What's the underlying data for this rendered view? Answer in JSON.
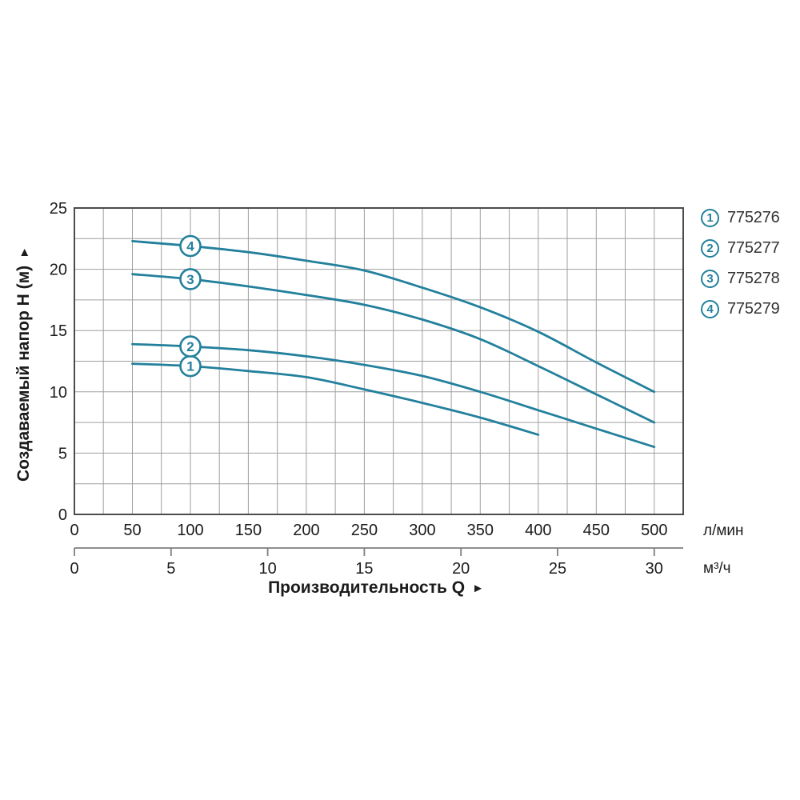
{
  "page": {
    "background": "#ffffff"
  },
  "chart_data": {
    "type": "line",
    "title": "",
    "x_axis": {
      "label": "Производительность Q",
      "label_arrow": "►",
      "primary_unit": "л/мин",
      "primary_ticks": [
        0,
        50,
        100,
        150,
        200,
        250,
        300,
        350,
        400,
        450,
        500
      ],
      "secondary_unit": "м³/ч",
      "secondary_ticks": [
        0,
        5,
        10,
        15,
        20,
        25,
        30
      ],
      "range_lmin": [
        0,
        525
      ],
      "grid_step_lmin": 25,
      "lmin_per_m3h": 16.6667,
      "grid": true
    },
    "y_axis": {
      "label": "Создаваемый напор H (м)",
      "label_arrow": "►",
      "ticks": [
        0,
        5,
        10,
        15,
        20,
        25
      ],
      "range": [
        0,
        25
      ],
      "grid_step": 2.5,
      "grid": true
    },
    "marker_at_q": 100,
    "series": [
      {
        "marker": "1",
        "model": "775276",
        "points": [
          [
            50,
            12.3
          ],
          [
            100,
            12.1
          ],
          [
            150,
            11.7
          ],
          [
            200,
            11.2
          ],
          [
            250,
            10.2
          ],
          [
            300,
            9.1
          ],
          [
            350,
            7.9
          ],
          [
            400,
            6.5
          ]
        ]
      },
      {
        "marker": "2",
        "model": "775277",
        "points": [
          [
            50,
            13.9
          ],
          [
            100,
            13.7
          ],
          [
            150,
            13.4
          ],
          [
            200,
            12.9
          ],
          [
            250,
            12.2
          ],
          [
            300,
            11.3
          ],
          [
            350,
            10.0
          ],
          [
            400,
            8.5
          ],
          [
            450,
            7.0
          ],
          [
            500,
            5.5
          ]
        ]
      },
      {
        "marker": "3",
        "model": "775278",
        "points": [
          [
            50,
            19.6
          ],
          [
            100,
            19.2
          ],
          [
            150,
            18.6
          ],
          [
            200,
            17.9
          ],
          [
            250,
            17.1
          ],
          [
            300,
            15.9
          ],
          [
            350,
            14.3
          ],
          [
            400,
            12.1
          ],
          [
            450,
            9.8
          ],
          [
            500,
            7.5
          ]
        ]
      },
      {
        "marker": "4",
        "model": "775279",
        "points": [
          [
            50,
            22.3
          ],
          [
            100,
            21.9
          ],
          [
            150,
            21.4
          ],
          [
            200,
            20.7
          ],
          [
            250,
            19.9
          ],
          [
            300,
            18.5
          ],
          [
            350,
            16.9
          ],
          [
            400,
            14.9
          ],
          [
            450,
            12.4
          ],
          [
            500,
            10.0
          ]
        ]
      }
    ],
    "colors": {
      "curve": "#23809c",
      "grid": "#9f9f9f",
      "border": "#4c4c4c",
      "axis_text": "#1b1b1b",
      "secondary_axis": "#7f7f7f",
      "legend_text": "#333333",
      "marker_fill": "#ffffff"
    },
    "legend_position": "top-right-outside"
  },
  "legend": {
    "items": [
      {
        "marker": "1",
        "label": "775276"
      },
      {
        "marker": "2",
        "label": "775277"
      },
      {
        "marker": "3",
        "label": "775278"
      },
      {
        "marker": "4",
        "label": "775279"
      }
    ]
  }
}
